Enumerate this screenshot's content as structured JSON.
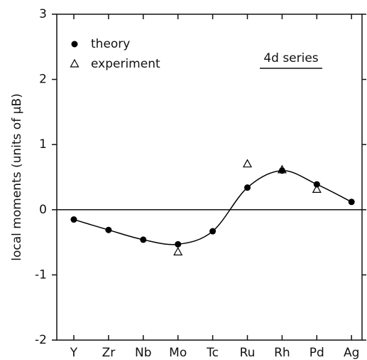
{
  "chart_data": {
    "type": "line",
    "ylabel": "local moments (units of μB)",
    "annotation": "4d series",
    "categories": [
      "Y",
      "Zr",
      "Nb",
      "Mo",
      "Tc",
      "Ru",
      "Rh",
      "Pd",
      "Ag"
    ],
    "series": [
      {
        "name": "theory",
        "color": "#000000",
        "marker": "circle",
        "line": true,
        "values": [
          -0.15,
          -0.31,
          -0.46,
          -0.53,
          -0.33,
          0.34,
          0.6,
          0.39,
          0.12
        ]
      },
      {
        "name": "experiment",
        "color": "#000000",
        "marker": "triangle",
        "line": false,
        "values": [
          null,
          null,
          null,
          -0.65,
          null,
          0.7,
          0.61,
          0.31,
          null
        ]
      }
    ],
    "ylim": [
      -2,
      3
    ],
    "yticks": [
      -2,
      -1,
      0,
      1,
      2,
      3
    ]
  }
}
